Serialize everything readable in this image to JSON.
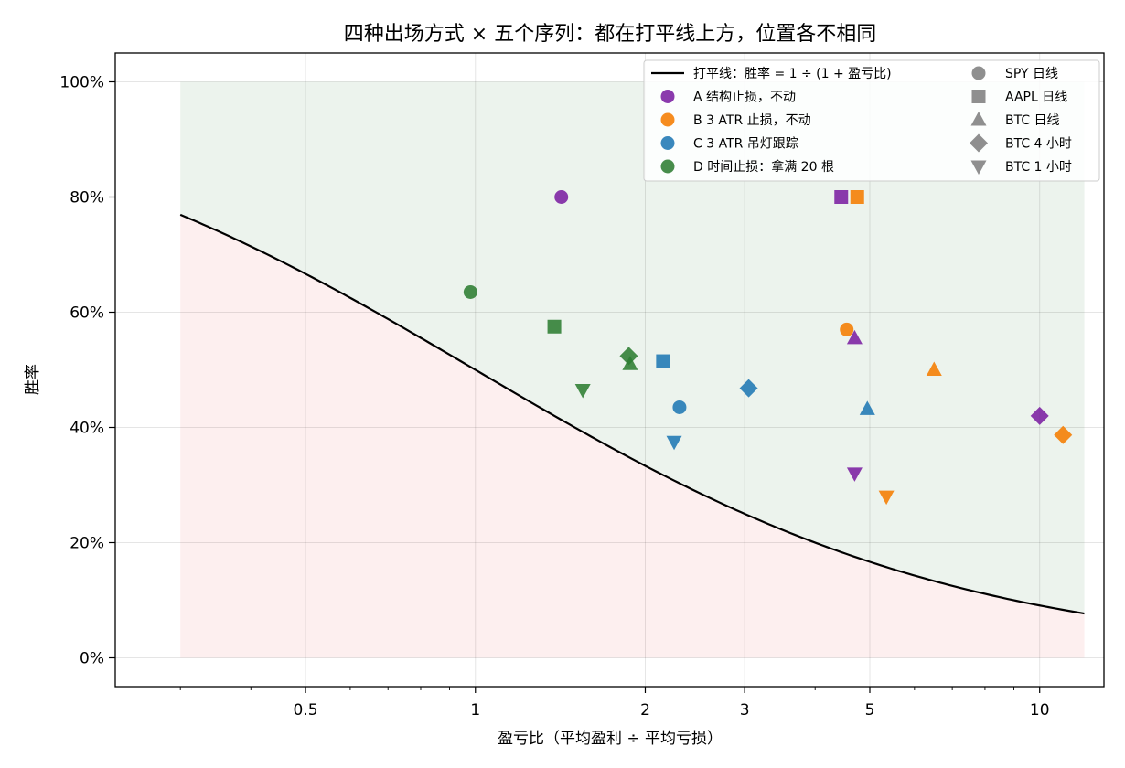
{
  "chart_data": {
    "type": "scatter",
    "title": "四种出场方式 × 五个序列：都在打平线上方，位置各不相同",
    "xlabel": "盈亏比（平均盈利 ÷ 平均亏损）",
    "ylabel": "胜率",
    "x_scale": "log",
    "xlim": [
      0.23,
      13
    ],
    "ylim": [
      -0.05,
      1.05
    ],
    "x_ticks": [
      0.5,
      1,
      2,
      3,
      5,
      10
    ],
    "x_tick_labels": [
      "0.5",
      "1",
      "2",
      "3",
      "5",
      "10"
    ],
    "y_ticks": [
      0,
      0.2,
      0.4,
      0.6,
      0.8,
      1.0
    ],
    "y_tick_labels": [
      "0%",
      "20%",
      "40%",
      "60%",
      "80%",
      "100%"
    ],
    "grid": true,
    "legend_position": "top-right",
    "breakeven": {
      "label": "打平线：胜率 = 1 ÷ (1 + 盈亏比)",
      "x_range": [
        0.3,
        12
      ],
      "color": "#000000"
    },
    "regions": {
      "above_color": "#2e7d32",
      "below_color": "#f08080"
    },
    "methods": [
      {
        "key": "A",
        "label": "A 结构止损，不动",
        "color": "#7b1fa2"
      },
      {
        "key": "B",
        "label": "B 3 ATR 止损，不动",
        "color": "#f57c00"
      },
      {
        "key": "C",
        "label": "C 3 ATR 吊灯跟踪",
        "color": "#1f77b4"
      },
      {
        "key": "D",
        "label": "D 时间止损：拿满 20 根",
        "color": "#2e7d32"
      }
    ],
    "series": [
      {
        "key": "spy",
        "label": "SPY 日线",
        "marker": "circle"
      },
      {
        "key": "aapl",
        "label": "AAPL 日线",
        "marker": "square"
      },
      {
        "key": "btcd",
        "label": "BTC 日线",
        "marker": "triangle-up"
      },
      {
        "key": "btc4h",
        "label": "BTC 4 小时",
        "marker": "diamond"
      },
      {
        "key": "btc1h",
        "label": "BTC 1 小时",
        "marker": "triangle-down"
      }
    ],
    "points": [
      {
        "method": "A",
        "series": "spy",
        "x": 1.42,
        "y": 0.8
      },
      {
        "method": "A",
        "series": "aapl",
        "x": 4.45,
        "y": 0.8
      },
      {
        "method": "A",
        "series": "btcd",
        "x": 4.7,
        "y": 0.555
      },
      {
        "method": "A",
        "series": "btc4h",
        "x": 10.0,
        "y": 0.42
      },
      {
        "method": "A",
        "series": "btc1h",
        "x": 4.7,
        "y": 0.32
      },
      {
        "method": "B",
        "series": "spy",
        "x": 4.55,
        "y": 0.57
      },
      {
        "method": "B",
        "series": "aapl",
        "x": 4.75,
        "y": 0.8
      },
      {
        "method": "B",
        "series": "btcd",
        "x": 6.5,
        "y": 0.5
      },
      {
        "method": "B",
        "series": "btc4h",
        "x": 11.0,
        "y": 0.387
      },
      {
        "method": "B",
        "series": "btc1h",
        "x": 5.35,
        "y": 0.28
      },
      {
        "method": "C",
        "series": "spy",
        "x": 2.3,
        "y": 0.435
      },
      {
        "method": "C",
        "series": "aapl",
        "x": 2.15,
        "y": 0.515
      },
      {
        "method": "C",
        "series": "btcd",
        "x": 4.95,
        "y": 0.432
      },
      {
        "method": "C",
        "series": "btc4h",
        "x": 3.05,
        "y": 0.468
      },
      {
        "method": "C",
        "series": "btc1h",
        "x": 2.25,
        "y": 0.375
      },
      {
        "method": "D",
        "series": "spy",
        "x": 0.98,
        "y": 0.635
      },
      {
        "method": "D",
        "series": "aapl",
        "x": 1.38,
        "y": 0.575
      },
      {
        "method": "D",
        "series": "btcd",
        "x": 1.88,
        "y": 0.51
      },
      {
        "method": "D",
        "series": "btc4h",
        "x": 1.87,
        "y": 0.524
      },
      {
        "method": "D",
        "series": "btc1h",
        "x": 1.55,
        "y": 0.465
      }
    ]
  }
}
